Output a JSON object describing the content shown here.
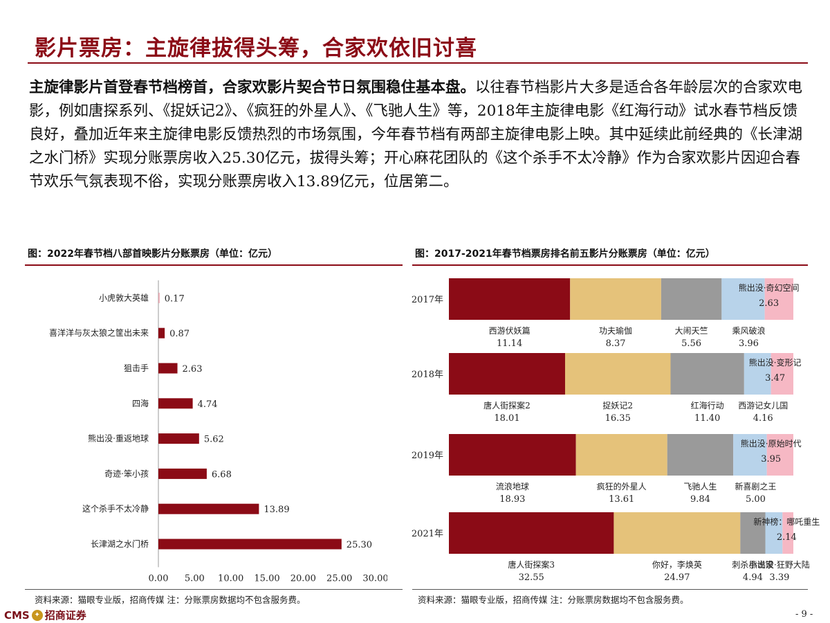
{
  "page": {
    "title": "影片票房：主旋律拔得头筹，合家欢依旧讨喜",
    "paragraph_bold": "主旋律影片首登春节档榜首，合家欢影片契合节日氛围稳住基本盘。",
    "paragraph_text": "以往春节档影片大多是适合各年龄层次的合家欢电影，例如唐探系列、《捉妖记2》、《疯狂的外星人》、《飞驰人生》等，2018年主旋律电影《红海行动》试水春节档反馈良好，叠加近年来主旋律电影反馈热烈的市场氛围，今年春节档有两部主旋律电影上映。其中延续此前经典的《长津湖之水门桥》实现分账票房收入25.30亿元，拔得头筹；开心麻花团队的《这个杀手不太冷静》作为合家欢影片因迎合春节欢乐气氛表现不俗，实现分账票房收入13.89亿元，位居第二。",
    "footer_logo_text": "CMS",
    "footer_logo_cn": "招商证券",
    "page_number": "- 9 -"
  },
  "left_figure": {
    "title": "图：2022年春节档八部首映影片分账票房（单位：亿元）",
    "source": "资料来源：猫眼专业版，招商传媒  注：分账票房数据均不包含服务费。"
  },
  "right_figure": {
    "title": "图：2017-2021年春节档票房排名前五影片分账票房（单位：亿元）",
    "source": "资料来源：猫眼专业版，招商传媒  注：分账票房数据均不包含服务费。"
  },
  "chart_data": [
    {
      "type": "bar",
      "orientation": "horizontal",
      "categories": [
        "小虎敦大英雄",
        "喜洋洋与灰太狼之筐出未来",
        "狙击手",
        "四海",
        "熊出没·重返地球",
        "奇迹·笨小孩",
        "这个杀手不太冷静",
        "长津湖之水门桥"
      ],
      "values": [
        0.17,
        0.87,
        2.63,
        4.74,
        5.62,
        6.68,
        13.89,
        25.3
      ],
      "value_labels": [
        "0.17",
        "0.87",
        "2.63",
        "4.74",
        "5.62",
        "6.68",
        "13.89",
        "25.30"
      ],
      "xlim": [
        0,
        30
      ],
      "xticks": [
        "0.00",
        "5.00",
        "10.00",
        "15.00",
        "20.00",
        "25.00",
        "30.00"
      ],
      "bar_color": "#8b0b16",
      "grid": false
    },
    {
      "type": "bar",
      "orientation": "horizontal",
      "stacked": true,
      "normalized": true,
      "categories": [
        "2017年",
        "2018年",
        "2019年",
        "2021年"
      ],
      "series_colors": [
        "#8b0b16",
        "#e5c27a",
        "#9a9a9a",
        "#b8d3ea",
        "#f6b8c4"
      ],
      "rows": [
        {
          "segments": [
            {
              "name": "西游伏妖篇",
              "value": 11.14,
              "value_label": "11.14"
            },
            {
              "name": "功夫瑜伽",
              "value": 8.37,
              "value_label": "8.37"
            },
            {
              "name": "大闹天竺",
              "value": 5.56,
              "value_label": "5.56"
            },
            {
              "name": "乘风破浪",
              "value": 3.96,
              "value_label": "3.96"
            },
            {
              "name": "熊出没·奇幻空间",
              "value": 2.63,
              "value_label": "2.63"
            }
          ]
        },
        {
          "segments": [
            {
              "name": "唐人街探案2",
              "value": 18.01,
              "value_label": "18.01"
            },
            {
              "name": "捉妖记2",
              "value": 16.35,
              "value_label": "16.35"
            },
            {
              "name": "红海行动",
              "value": 11.4,
              "value_label": "11.40"
            },
            {
              "name": "西游记女儿国",
              "value": 4.16,
              "value_label": "4.16"
            },
            {
              "name": "熊出没·变形记",
              "value": 3.47,
              "value_label": "3.47"
            }
          ]
        },
        {
          "segments": [
            {
              "name": "流浪地球",
              "value": 18.93,
              "value_label": "18.93"
            },
            {
              "name": "疯狂的外星人",
              "value": 13.61,
              "value_label": "13.61"
            },
            {
              "name": "飞驰人生",
              "value": 9.84,
              "value_label": "9.84"
            },
            {
              "name": "新喜剧之王",
              "value": 5.0,
              "value_label": "5.00"
            },
            {
              "name": "熊出没·原始时代",
              "value": 3.95,
              "value_label": "3.95"
            }
          ]
        },
        {
          "segments": [
            {
              "name": "唐人街探案3",
              "value": 32.55,
              "value_label": "32.55"
            },
            {
              "name": "你好，李焕英",
              "value": 24.97,
              "value_label": "24.97"
            },
            {
              "name": "刺杀小说家",
              "value": 4.94,
              "value_label": "4.94"
            },
            {
              "name": "熊出没·狂野大陆",
              "value": 3.39,
              "value_label": "3.39"
            },
            {
              "name": "新神榜：哪吒重生",
              "value": 2.14,
              "value_label": "2.14"
            }
          ]
        }
      ]
    }
  ]
}
